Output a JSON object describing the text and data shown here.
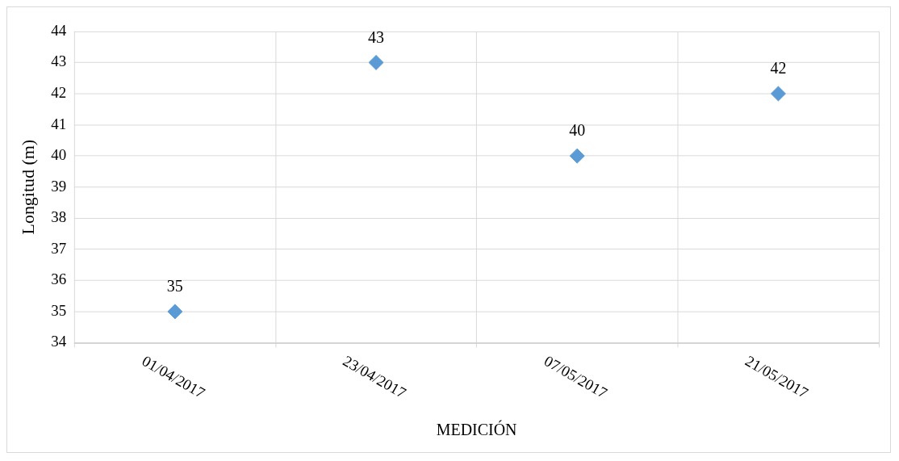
{
  "chart_data": {
    "type": "scatter",
    "xlabel": "MEDICIÓN",
    "ylabel": "Longitud (m)",
    "categories": [
      "01/04/2017",
      "23/04/2017",
      "07/05/2017",
      "21/05/2017"
    ],
    "series": [
      {
        "color": "#5b9bd5",
        "values": [
          35,
          43,
          40,
          42
        ]
      }
    ],
    "ylim": [
      34,
      44
    ],
    "yticks": [
      34,
      35,
      36,
      37,
      38,
      39,
      40,
      41,
      42,
      43,
      44
    ],
    "grid": true,
    "marker": "diamond",
    "data_labels": true,
    "legend": false
  }
}
